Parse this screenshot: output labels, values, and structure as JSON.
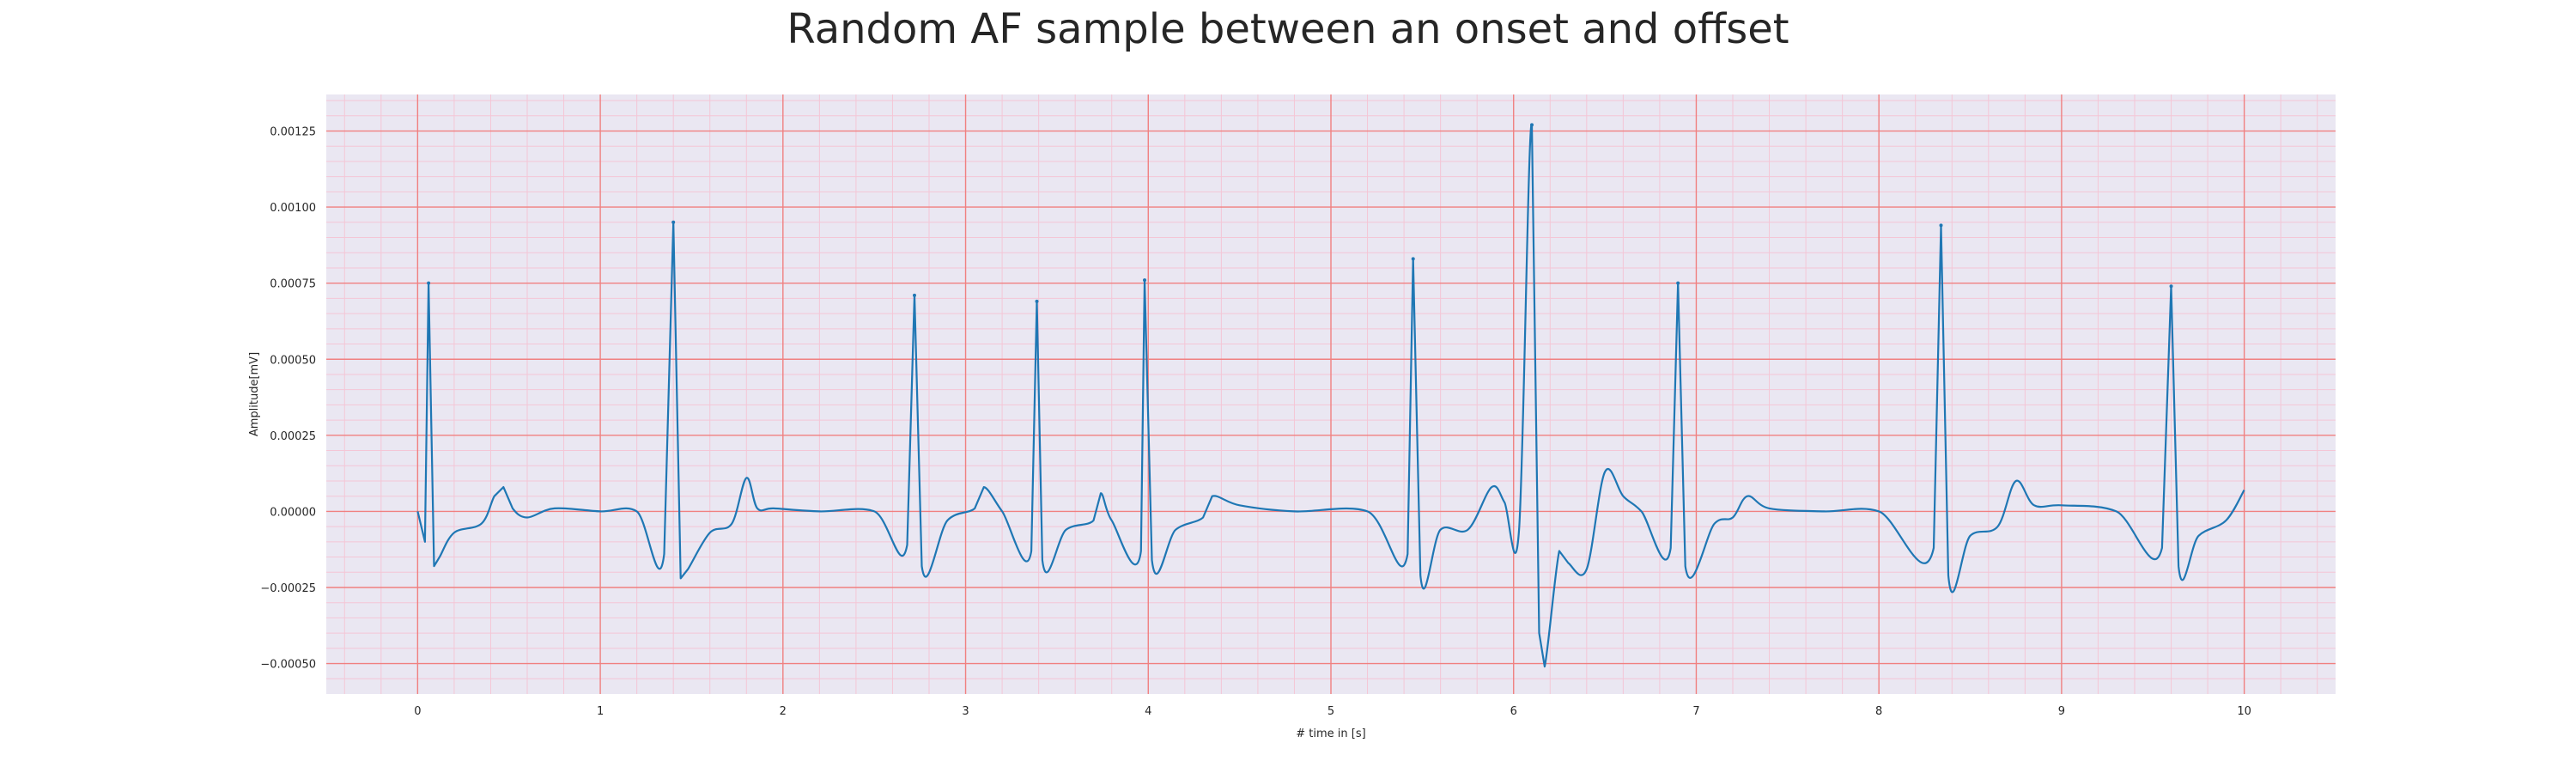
{
  "chart_data": {
    "type": "line",
    "title": "Random AF sample between an onset and offset",
    "xlabel": "# time in [s]",
    "ylabel": "Amplitude[mV]",
    "xlim": [
      -0.5,
      10.5
    ],
    "ylim": [
      -0.0006,
      0.00137
    ],
    "xticks": [
      0,
      1,
      2,
      3,
      4,
      5,
      6,
      7,
      8,
      9,
      10
    ],
    "yticks": [
      -0.0005,
      -0.00025,
      0.0,
      0.00025,
      0.0005,
      0.00075,
      0.001,
      0.00125
    ],
    "ytick_labels": [
      "−0.00050",
      "−0.00025",
      "0.00000",
      "0.00025",
      "0.00050",
      "0.00075",
      "0.00100",
      "0.00125"
    ],
    "grid": true,
    "colors": {
      "line": "#1f77b4",
      "plot_background": "#eae7f2",
      "major_grid": "#f08080",
      "minor_grid": "#f4c6d6"
    },
    "series": [
      {
        "beats": [
          {
            "t": 0.06,
            "amp": 0.00075
          },
          {
            "t": 1.4,
            "amp": 0.00095
          },
          {
            "t": 2.72,
            "amp": 0.00071
          },
          {
            "t": 3.39,
            "amp": 0.00069
          },
          {
            "t": 3.98,
            "amp": 0.00076
          },
          {
            "t": 5.45,
            "amp": 0.00083
          },
          {
            "t": 6.1,
            "amp": 0.00127
          },
          {
            "t": 6.9,
            "amp": 0.00075
          },
          {
            "t": 8.34,
            "amp": 0.00094
          },
          {
            "t": 9.6,
            "amp": 0.00074
          }
        ],
        "x": [
          0.0,
          0.04,
          0.06,
          0.09,
          0.12,
          0.2,
          0.35,
          0.42,
          0.47,
          0.52,
          0.6,
          0.75,
          1.0,
          1.2,
          1.35,
          1.4,
          1.44,
          1.48,
          1.6,
          1.72,
          1.8,
          1.86,
          1.95,
          2.2,
          2.5,
          2.68,
          2.72,
          2.76,
          2.9,
          3.05,
          3.1,
          3.2,
          3.36,
          3.39,
          3.42,
          3.55,
          3.7,
          3.74,
          3.8,
          3.96,
          3.98,
          4.02,
          4.15,
          4.3,
          4.35,
          4.5,
          4.8,
          5.2,
          5.42,
          5.45,
          5.49,
          5.6,
          5.75,
          5.88,
          5.95,
          6.03,
          6.1,
          6.14,
          6.17,
          6.25,
          6.3,
          6.4,
          6.5,
          6.6,
          6.7,
          6.86,
          6.9,
          6.94,
          7.1,
          7.2,
          7.28,
          7.4,
          7.7,
          8.0,
          8.3,
          8.34,
          8.38,
          8.5,
          8.65,
          8.75,
          8.85,
          9.0,
          9.3,
          9.55,
          9.6,
          9.64,
          9.75,
          9.9,
          10.0
        ],
        "y": [
          0.0,
          -0.0001,
          0.00075,
          -0.00018,
          -0.00015,
          -7e-05,
          -4e-05,
          5e-05,
          8e-05,
          1e-05,
          -2e-05,
          1e-05,
          0.0,
          0.0,
          -0.00014,
          0.00095,
          -0.00022,
          -0.00019,
          -7e-05,
          -4e-05,
          0.00011,
          1e-05,
          1e-05,
          0.0,
          0.0,
          -0.00011,
          0.00071,
          -0.00018,
          -3e-05,
          1e-05,
          8e-05,
          0.0,
          -0.00013,
          0.00069,
          -0.00016,
          -6e-05,
          -3e-05,
          6e-05,
          -3e-05,
          -0.00013,
          0.00076,
          -0.00016,
          -6e-05,
          -2e-05,
          5e-05,
          2e-05,
          0.0,
          0.0,
          -0.00014,
          0.00083,
          -0.00021,
          -6e-05,
          -6e-05,
          8e-05,
          3e-05,
          -6e-05,
          0.00127,
          -0.0004,
          -0.00051,
          -0.00013,
          -0.00017,
          -0.00019,
          0.00013,
          5e-05,
          0.0,
          -0.00012,
          0.00075,
          -0.00018,
          -4e-05,
          -2e-05,
          5e-05,
          1e-05,
          0.0,
          0.0,
          -0.00012,
          0.00094,
          -0.00021,
          -8e-05,
          -5e-05,
          0.0001,
          2e-05,
          2e-05,
          0.0,
          -0.00012,
          0.00074,
          -0.00018,
          -8e-05,
          -3e-05,
          7e-05
        ]
      }
    ]
  }
}
